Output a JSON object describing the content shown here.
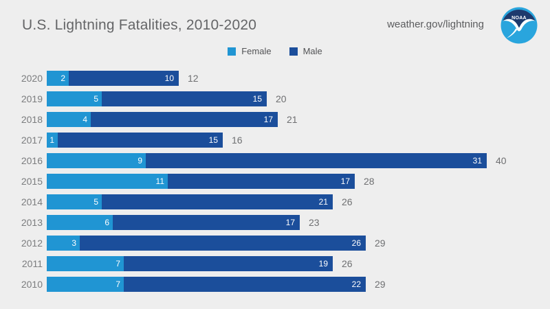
{
  "header": {
    "title": "U.S. Lightning Fatalities, 2010-2020",
    "site_url": "weather.gov/lightning",
    "logo_text": "NOAA"
  },
  "legend": {
    "female_label": "Female",
    "male_label": "Male"
  },
  "colors": {
    "female": "#2095d3",
    "male": "#1b4e9b",
    "background": "#eeeeee",
    "logo_navy": "#1e3a6d",
    "logo_cyan": "#29a5dd"
  },
  "chart_data": {
    "type": "bar",
    "orientation": "horizontal",
    "stacked": true,
    "title": "U.S. Lightning Fatalities, 2010-2020",
    "categories": [
      "2020",
      "2019",
      "2018",
      "2017",
      "2016",
      "2015",
      "2014",
      "2013",
      "2012",
      "2011",
      "2010"
    ],
    "series": [
      {
        "name": "Female",
        "values": [
          2,
          5,
          4,
          1,
          9,
          11,
          5,
          6,
          3,
          7,
          7
        ]
      },
      {
        "name": "Male",
        "values": [
          10,
          15,
          17,
          15,
          31,
          17,
          21,
          17,
          26,
          19,
          22
        ]
      }
    ],
    "totals": [
      12,
      20,
      21,
      16,
      40,
      28,
      26,
      23,
      29,
      26,
      29
    ],
    "xlabel": "",
    "ylabel": "",
    "xlim": [
      0,
      40
    ],
    "grid": false,
    "legend_position": "top-center",
    "value_labels": "inside-end",
    "total_labels": "outside-end"
  }
}
